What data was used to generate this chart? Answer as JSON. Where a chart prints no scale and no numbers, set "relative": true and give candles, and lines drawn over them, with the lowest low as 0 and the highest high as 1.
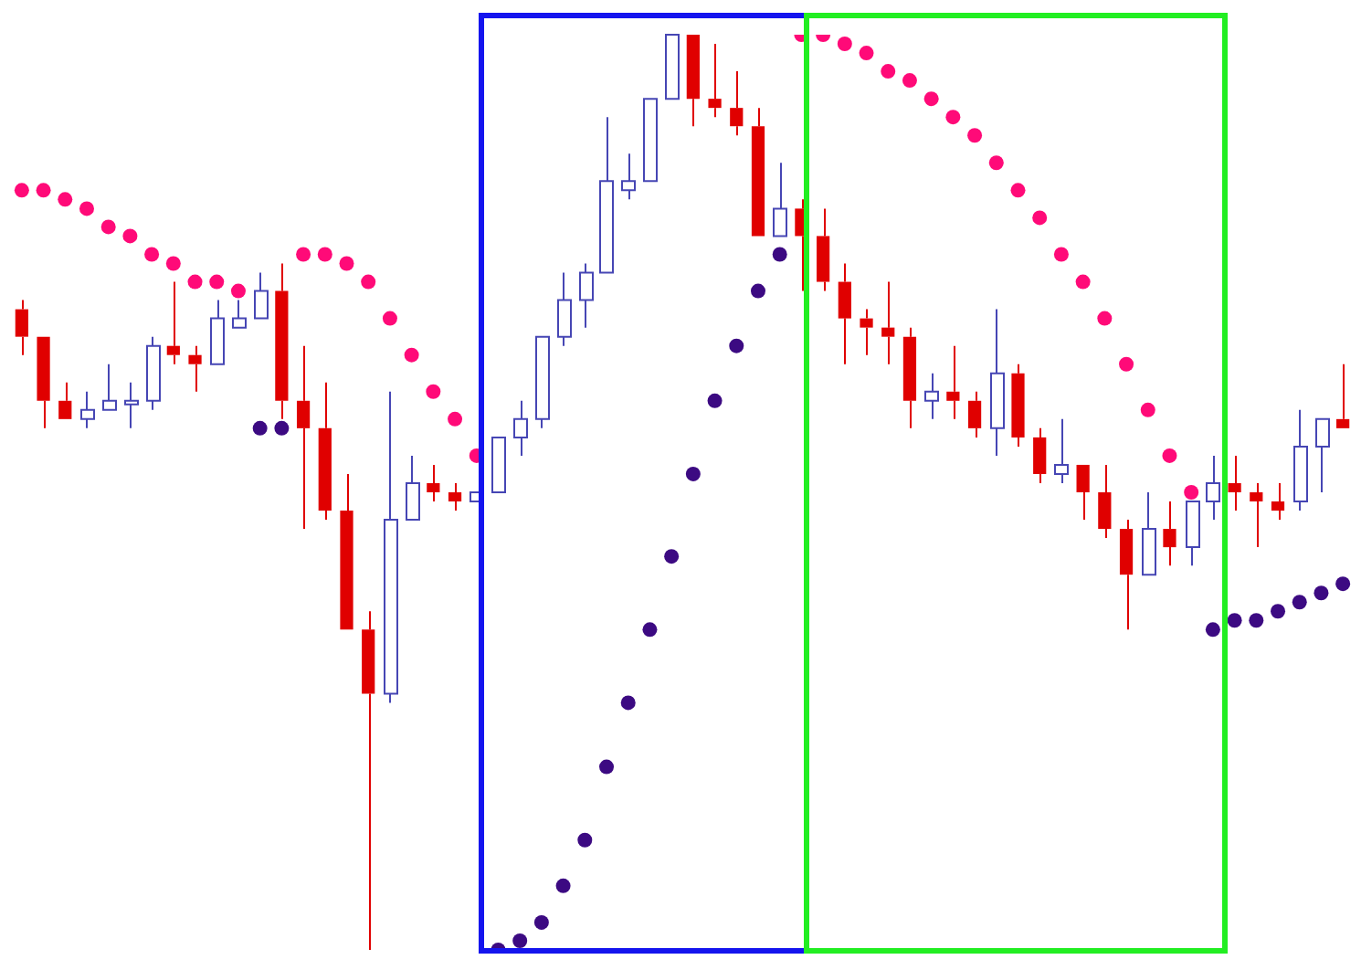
{
  "chart_data": {
    "type": "candlestick",
    "relative": true,
    "tick_labels": false,
    "legend": false,
    "marker": "circle",
    "categories": [
      null,
      null,
      null,
      null,
      null,
      null,
      null,
      null,
      null,
      null,
      null,
      null,
      null,
      null,
      null,
      null,
      null,
      null,
      null,
      null,
      null,
      null,
      null,
      null,
      null,
      null,
      null,
      null,
      null,
      null,
      null,
      null,
      null,
      null,
      null,
      null,
      null,
      null,
      null,
      null,
      null,
      null,
      null,
      null,
      null,
      null,
      null,
      null,
      null,
      null,
      null,
      null,
      null,
      null,
      null,
      null,
      null,
      null,
      null,
      null,
      null,
      null
    ],
    "ohlc": [
      [
        0.7,
        0.71,
        0.65,
        0.67
      ],
      [
        0.67,
        0.67,
        0.57,
        0.6
      ],
      [
        0.6,
        0.62,
        0.58,
        0.58
      ],
      [
        0.58,
        0.61,
        0.57,
        0.59
      ],
      [
        0.59,
        0.64,
        0.59,
        0.6
      ],
      [
        0.6,
        0.62,
        0.57,
        0.6
      ],
      [
        0.6,
        0.67,
        0.59,
        0.66
      ],
      [
        0.66,
        0.73,
        0.64,
        0.65
      ],
      [
        0.65,
        0.66,
        0.61,
        0.64
      ],
      [
        0.64,
        0.71,
        0.64,
        0.69
      ],
      [
        0.68,
        0.71,
        0.68,
        0.69
      ],
      [
        0.69,
        0.74,
        0.69,
        0.72
      ],
      [
        0.72,
        0.75,
        0.58,
        0.6
      ],
      [
        0.6,
        0.66,
        0.46,
        0.57
      ],
      [
        0.57,
        0.62,
        0.47,
        0.48
      ],
      [
        0.48,
        0.52,
        0.35,
        0.35
      ],
      [
        0.35,
        0.37,
        0,
        0.28
      ],
      [
        0.28,
        0.61,
        0.27,
        0.47
      ],
      [
        0.47,
        0.54,
        0.47,
        0.51
      ],
      [
        0.51,
        0.53,
        0.49,
        0.5
      ],
      [
        0.5,
        0.51,
        0.48,
        0.49
      ],
      [
        0.49,
        0.5,
        0.49,
        0.5
      ],
      [
        0.5,
        0.56,
        0.5,
        0.56
      ],
      [
        0.56,
        0.6,
        0.54,
        0.58
      ],
      [
        0.58,
        0.67,
        0.57,
        0.67
      ],
      [
        0.67,
        0.74,
        0.66,
        0.71
      ],
      [
        0.71,
        0.75,
        0.68,
        0.74
      ],
      [
        0.74,
        0.91,
        0.74,
        0.84
      ],
      [
        0.83,
        0.87,
        0.82,
        0.84
      ],
      [
        0.84,
        0.93,
        0.84,
        0.93
      ],
      [
        0.93,
        1,
        0.93,
        1
      ],
      [
        1,
        1,
        0.9,
        0.93
      ],
      [
        0.93,
        0.99,
        0.91,
        0.92
      ],
      [
        0.92,
        0.96,
        0.89,
        0.9
      ],
      [
        0.9,
        0.92,
        0.78,
        0.78
      ],
      [
        0.78,
        0.86,
        0.78,
        0.81
      ],
      [
        0.81,
        0.82,
        0.72,
        0.78
      ],
      [
        0.78,
        0.81,
        0.72,
        0.73
      ],
      [
        0.73,
        0.75,
        0.64,
        0.69
      ],
      [
        0.69,
        0.7,
        0.65,
        0.68
      ],
      [
        0.68,
        0.73,
        0.64,
        0.67
      ],
      [
        0.67,
        0.68,
        0.57,
        0.6
      ],
      [
        0.6,
        0.63,
        0.58,
        0.61
      ],
      [
        0.61,
        0.66,
        0.58,
        0.6
      ],
      [
        0.6,
        0.61,
        0.56,
        0.57
      ],
      [
        0.57,
        0.7,
        0.54,
        0.63
      ],
      [
        0.63,
        0.64,
        0.55,
        0.56
      ],
      [
        0.56,
        0.57,
        0.51,
        0.52
      ],
      [
        0.52,
        0.58,
        0.51,
        0.53
      ],
      [
        0.53,
        0.53,
        0.47,
        0.5
      ],
      [
        0.5,
        0.53,
        0.45,
        0.46
      ],
      [
        0.46,
        0.47,
        0.35,
        0.41
      ],
      [
        0.41,
        0.5,
        0.41,
        0.46
      ],
      [
        0.46,
        0.49,
        0.42,
        0.44
      ],
      [
        0.44,
        0.49,
        0.42,
        0.49
      ],
      [
        0.49,
        0.54,
        0.47,
        0.51
      ],
      [
        0.51,
        0.54,
        0.48,
        0.5
      ],
      [
        0.5,
        0.51,
        0.44,
        0.49
      ],
      [
        0.49,
        0.51,
        0.47,
        0.48
      ],
      [
        0.49,
        0.59,
        0.48,
        0.55
      ],
      [
        0.55,
        0.58,
        0.5,
        0.58
      ],
      [
        0.58,
        0.64,
        0.57,
        0.57
      ]
    ],
    "series": [
      {
        "type": "scatter",
        "color": "#ff0a78",
        "values": [
          0.83,
          0.83,
          0.82,
          0.81,
          0.79,
          0.78,
          0.76,
          0.75,
          0.73,
          0.73,
          0.72,
          null,
          null,
          0.76,
          0.76,
          0.75,
          0.73,
          0.69,
          0.65,
          0.61,
          0.58,
          0.54,
          null,
          null,
          null,
          null,
          null,
          null,
          null,
          null,
          null,
          null,
          null,
          null,
          null,
          null,
          1.0,
          1.0,
          0.99,
          0.98,
          0.96,
          0.95,
          0.93,
          0.91,
          0.89,
          0.86,
          0.83,
          0.8,
          0.76,
          0.73,
          0.69,
          0.64,
          0.59,
          0.54,
          0.5,
          null,
          null,
          null,
          null,
          null,
          null,
          null
        ]
      },
      {
        "type": "scatter",
        "color": "#3c0a82",
        "values": [
          null,
          null,
          null,
          null,
          null,
          null,
          null,
          null,
          null,
          null,
          null,
          0.57,
          0.57,
          null,
          null,
          null,
          null,
          null,
          null,
          null,
          null,
          null,
          0,
          0.01,
          0.03,
          0.07,
          0.12,
          0.2,
          0.27,
          0.35,
          0.43,
          0.52,
          0.6,
          0.66,
          0.72,
          0.76,
          null,
          null,
          null,
          null,
          null,
          null,
          null,
          null,
          null,
          null,
          null,
          null,
          null,
          null,
          null,
          null,
          null,
          null,
          null,
          0.35,
          0.36,
          0.36,
          0.37,
          0.38,
          0.39,
          0.4
        ]
      }
    ]
  }
}
